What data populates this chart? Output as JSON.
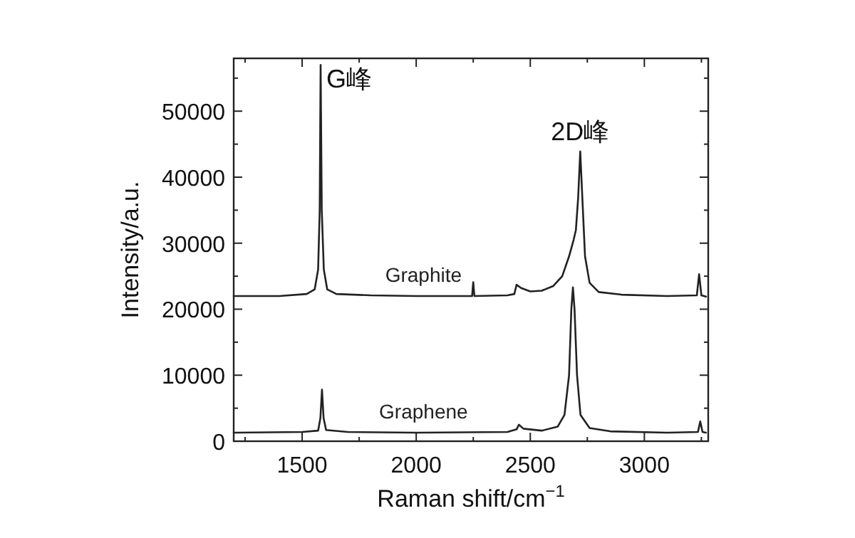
{
  "chart_data": {
    "type": "line",
    "xlabel": "Raman shift/cm$^{−1}$",
    "ylabel": "Intensity/a.u.",
    "xlim": [
      1200,
      3280
    ],
    "ylim": [
      0,
      58000
    ],
    "xticks": [
      1500,
      2000,
      2500,
      3000
    ],
    "yticks": [
      0,
      10000,
      20000,
      30000,
      40000,
      50000
    ],
    "series": [
      {
        "name": "Graphite",
        "color": "#222222",
        "x": [
          1200,
          1400,
          1520,
          1555,
          1570,
          1577,
          1581,
          1586,
          1595,
          1610,
          1650,
          1800,
          2000,
          2245,
          2250,
          2255,
          2400,
          2430,
          2440,
          2460,
          2500,
          2550,
          2600,
          2640,
          2670,
          2690,
          2700,
          2710,
          2719,
          2728,
          2740,
          2760,
          2800,
          2900,
          3100,
          3230,
          3240,
          3250,
          3270
        ],
        "values": [
          22000,
          22000,
          22300,
          23000,
          26000,
          35000,
          57000,
          35000,
          26000,
          23000,
          22300,
          22100,
          22000,
          22000,
          24100,
          22000,
          22100,
          22300,
          23700,
          23200,
          22700,
          22800,
          23500,
          25000,
          28000,
          30500,
          32000,
          37000,
          43900,
          37000,
          28000,
          24000,
          22600,
          22200,
          22000,
          22100,
          25300,
          22100,
          21900
        ]
      },
      {
        "name": "Graphene",
        "color": "#222222",
        "x": [
          1200,
          1500,
          1570,
          1580,
          1587,
          1594,
          1605,
          1700,
          2000,
          2400,
          2440,
          2450,
          2470,
          2550,
          2620,
          2650,
          2670,
          2680,
          2687,
          2694,
          2705,
          2720,
          2760,
          2850,
          3100,
          3235,
          3245,
          3255,
          3270
        ],
        "values": [
          1300,
          1400,
          1600,
          3500,
          7800,
          3500,
          1700,
          1400,
          1300,
          1400,
          1800,
          2500,
          1900,
          1600,
          2200,
          4000,
          10000,
          20000,
          23300,
          20000,
          10000,
          4000,
          2000,
          1500,
          1300,
          1400,
          3000,
          1400,
          1300
        ]
      }
    ],
    "annotations": [
      {
        "text": "G峰",
        "x": 1581,
        "y": 57000
      },
      {
        "text": "2D峰",
        "x": 2719,
        "y": 43900
      }
    ]
  }
}
